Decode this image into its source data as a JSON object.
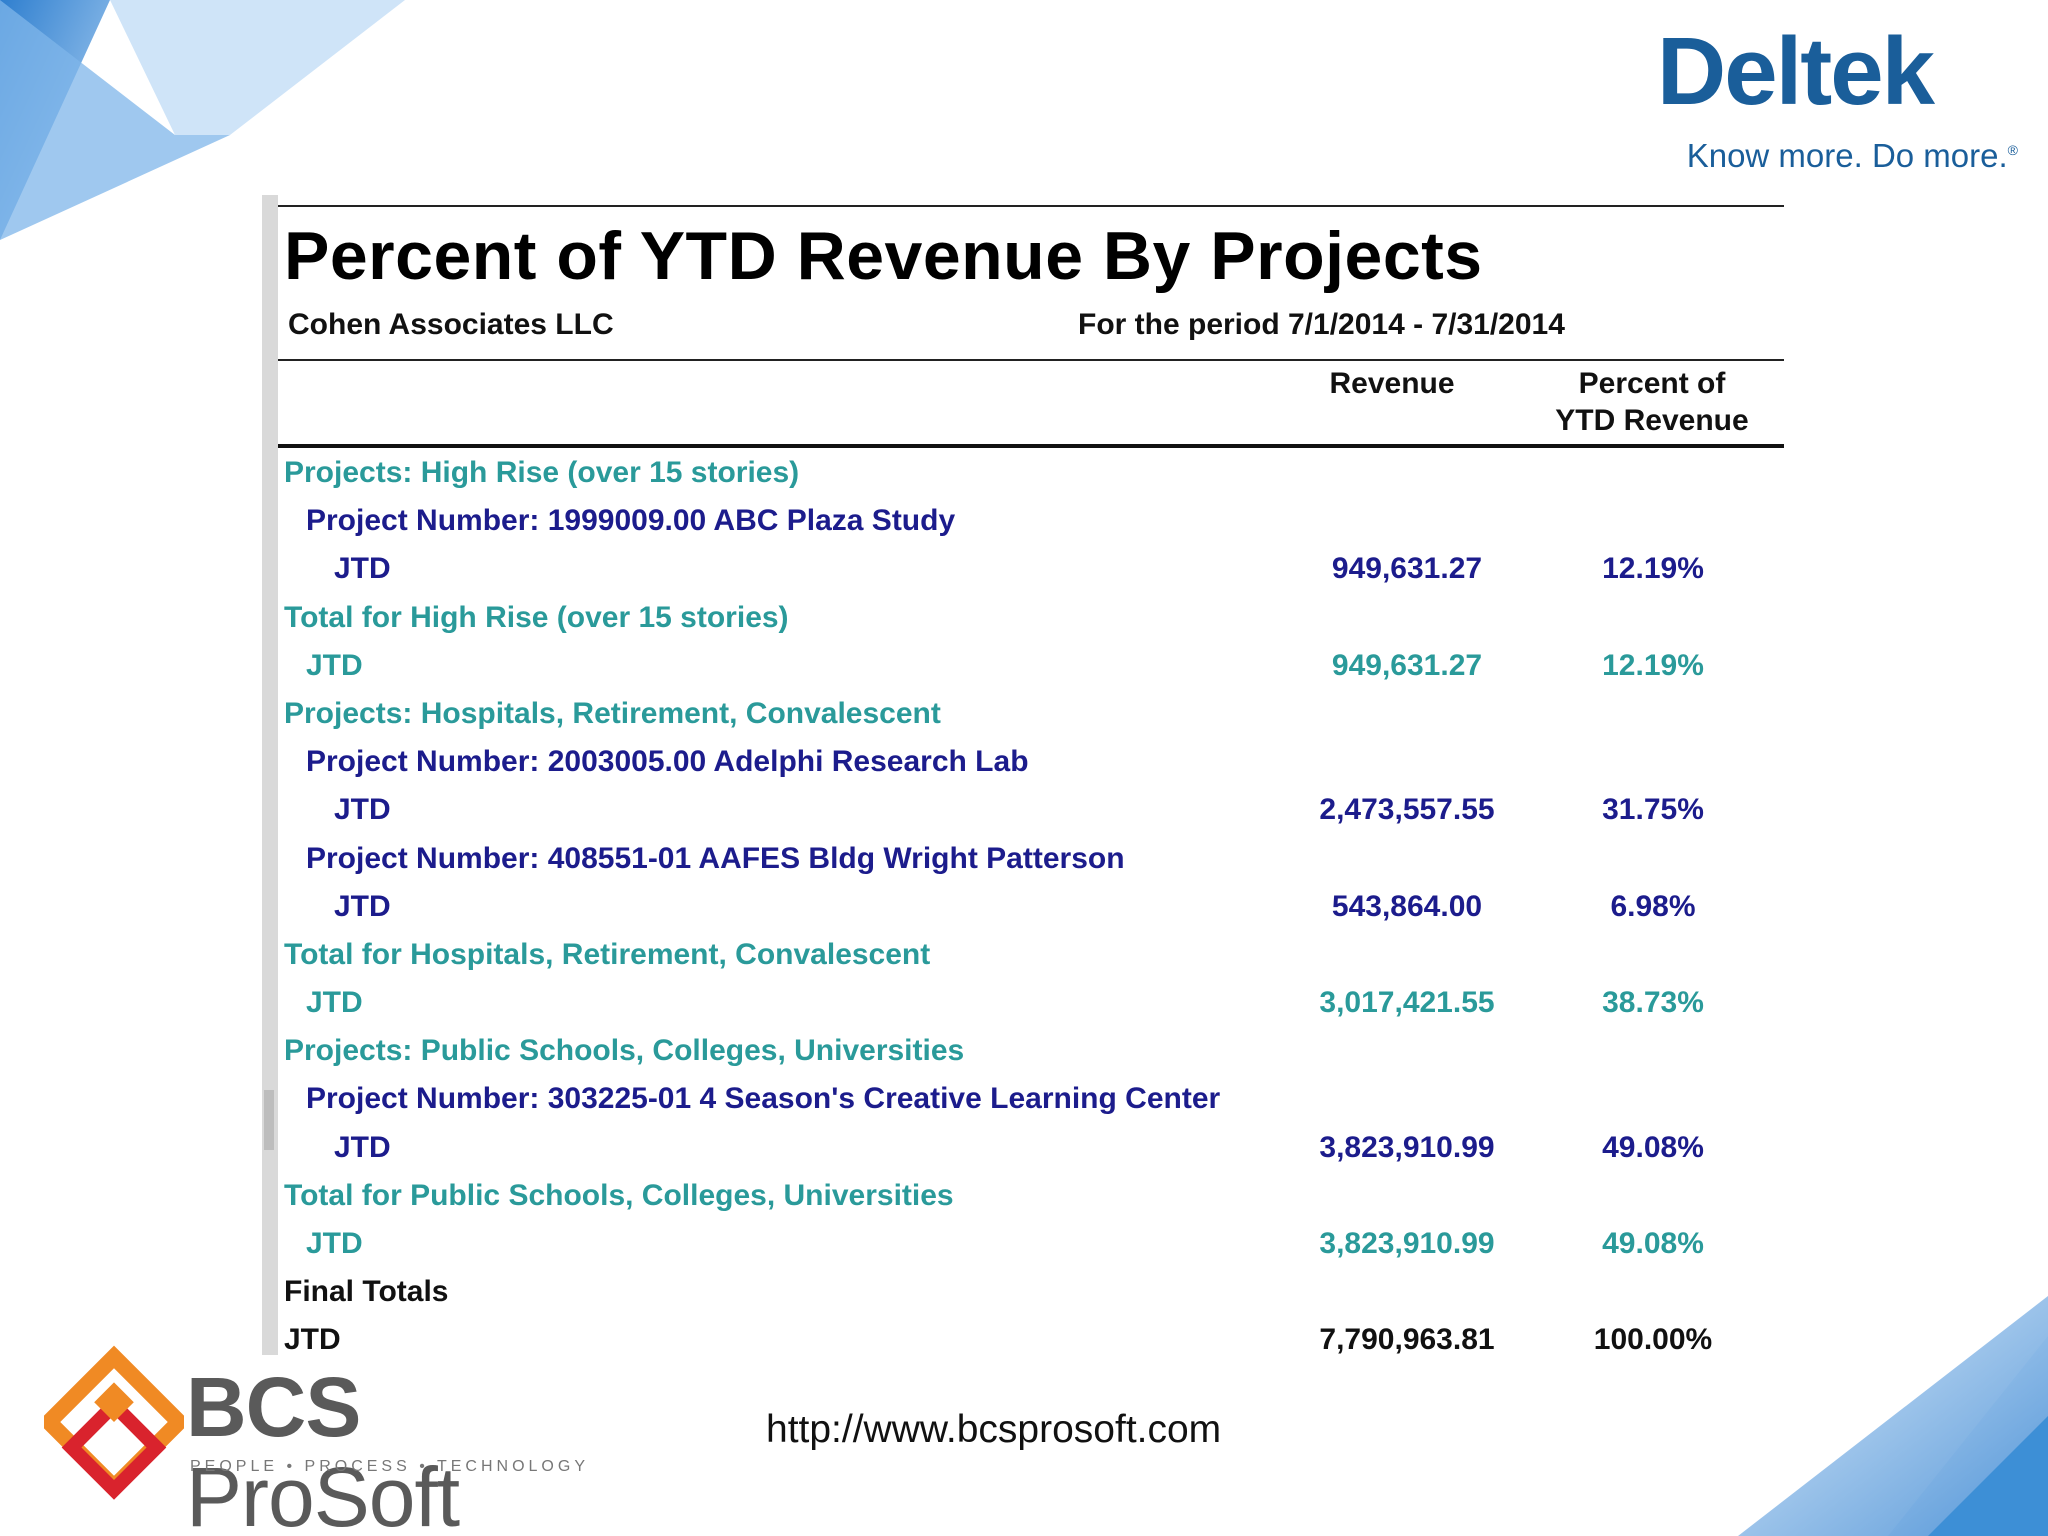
{
  "brand": {
    "name": "Deltek",
    "tagline": "Know more. Do more.",
    "tagline_mark": "®",
    "color": "#1a5e9a"
  },
  "report": {
    "title": "Percent of YTD Revenue By Projects",
    "company": "Cohen Associates LLC",
    "period": "For the period 7/1/2014 - 7/31/2014",
    "columns": {
      "revenue": "Revenue",
      "percent_line1": "Percent of",
      "percent_line2": "YTD Revenue"
    },
    "rows": [
      {
        "label": "Projects: High Rise (over 15 stories)",
        "revenue": "",
        "percent": "",
        "style": "teal",
        "level": 0
      },
      {
        "label": "Project Number: 1999009.00 ABC Plaza Study",
        "revenue": "",
        "percent": "",
        "style": "navy",
        "level": 1
      },
      {
        "label": "JTD",
        "revenue": "949,631.27",
        "percent": "12.19%",
        "style": "navy",
        "level": 2
      },
      {
        "label": "Total for High Rise (over 15 stories)",
        "revenue": "",
        "percent": "",
        "style": "teal",
        "level": 0
      },
      {
        "label": "JTD",
        "revenue": "949,631.27",
        "percent": "12.19%",
        "style": "teal",
        "level": 1
      },
      {
        "label": "Projects: Hospitals, Retirement, Convalescent",
        "revenue": "",
        "percent": "",
        "style": "teal",
        "level": 0
      },
      {
        "label": "Project Number: 2003005.00 Adelphi Research Lab",
        "revenue": "",
        "percent": "",
        "style": "navy",
        "level": 1
      },
      {
        "label": "JTD",
        "revenue": "2,473,557.55",
        "percent": "31.75%",
        "style": "navy",
        "level": 2
      },
      {
        "label": "Project Number: 408551-01 AAFES Bldg Wright Patterson",
        "revenue": "",
        "percent": "",
        "style": "navy",
        "level": 1
      },
      {
        "label": "JTD",
        "revenue": "543,864.00",
        "percent": "6.98%",
        "style": "navy",
        "level": 2
      },
      {
        "label": "Total for Hospitals, Retirement, Convalescent",
        "revenue": "",
        "percent": "",
        "style": "teal",
        "level": 0
      },
      {
        "label": "JTD",
        "revenue": "3,017,421.55",
        "percent": "38.73%",
        "style": "teal",
        "level": 1
      },
      {
        "label": "Projects: Public Schools, Colleges, Universities",
        "revenue": "",
        "percent": "",
        "style": "teal",
        "level": 0
      },
      {
        "label": "Project Number: 303225-01 4 Season's Creative Learning Center",
        "revenue": "",
        "percent": "",
        "style": "navy",
        "level": 1
      },
      {
        "label": "JTD",
        "revenue": "3,823,910.99",
        "percent": "49.08%",
        "style": "navy",
        "level": 2
      },
      {
        "label": "Total for Public Schools, Colleges, Universities",
        "revenue": "",
        "percent": "",
        "style": "teal",
        "level": 0
      },
      {
        "label": "JTD",
        "revenue": "3,823,910.99",
        "percent": "49.08%",
        "style": "teal",
        "level": 1
      },
      {
        "label": "Final Totals",
        "revenue": "",
        "percent": "",
        "style": "black",
        "level": 0
      },
      {
        "label": "JTD",
        "revenue": "7,790,963.81",
        "percent": "100.00%",
        "style": "black",
        "level": 0
      }
    ]
  },
  "footer": {
    "company_bold": "BCS",
    "company_rest": " ProSoft",
    "company_tagline": "PEOPLE • PROCESS • TECHNOLOGY",
    "url": "http://www.bcsprosoft.com"
  },
  "colors": {
    "teal": "#2a9a9a",
    "navy": "#1c1c8c",
    "logo_orange": "#f08a24",
    "logo_red": "#d9232d",
    "deco_blue": "#3d8fd6"
  }
}
